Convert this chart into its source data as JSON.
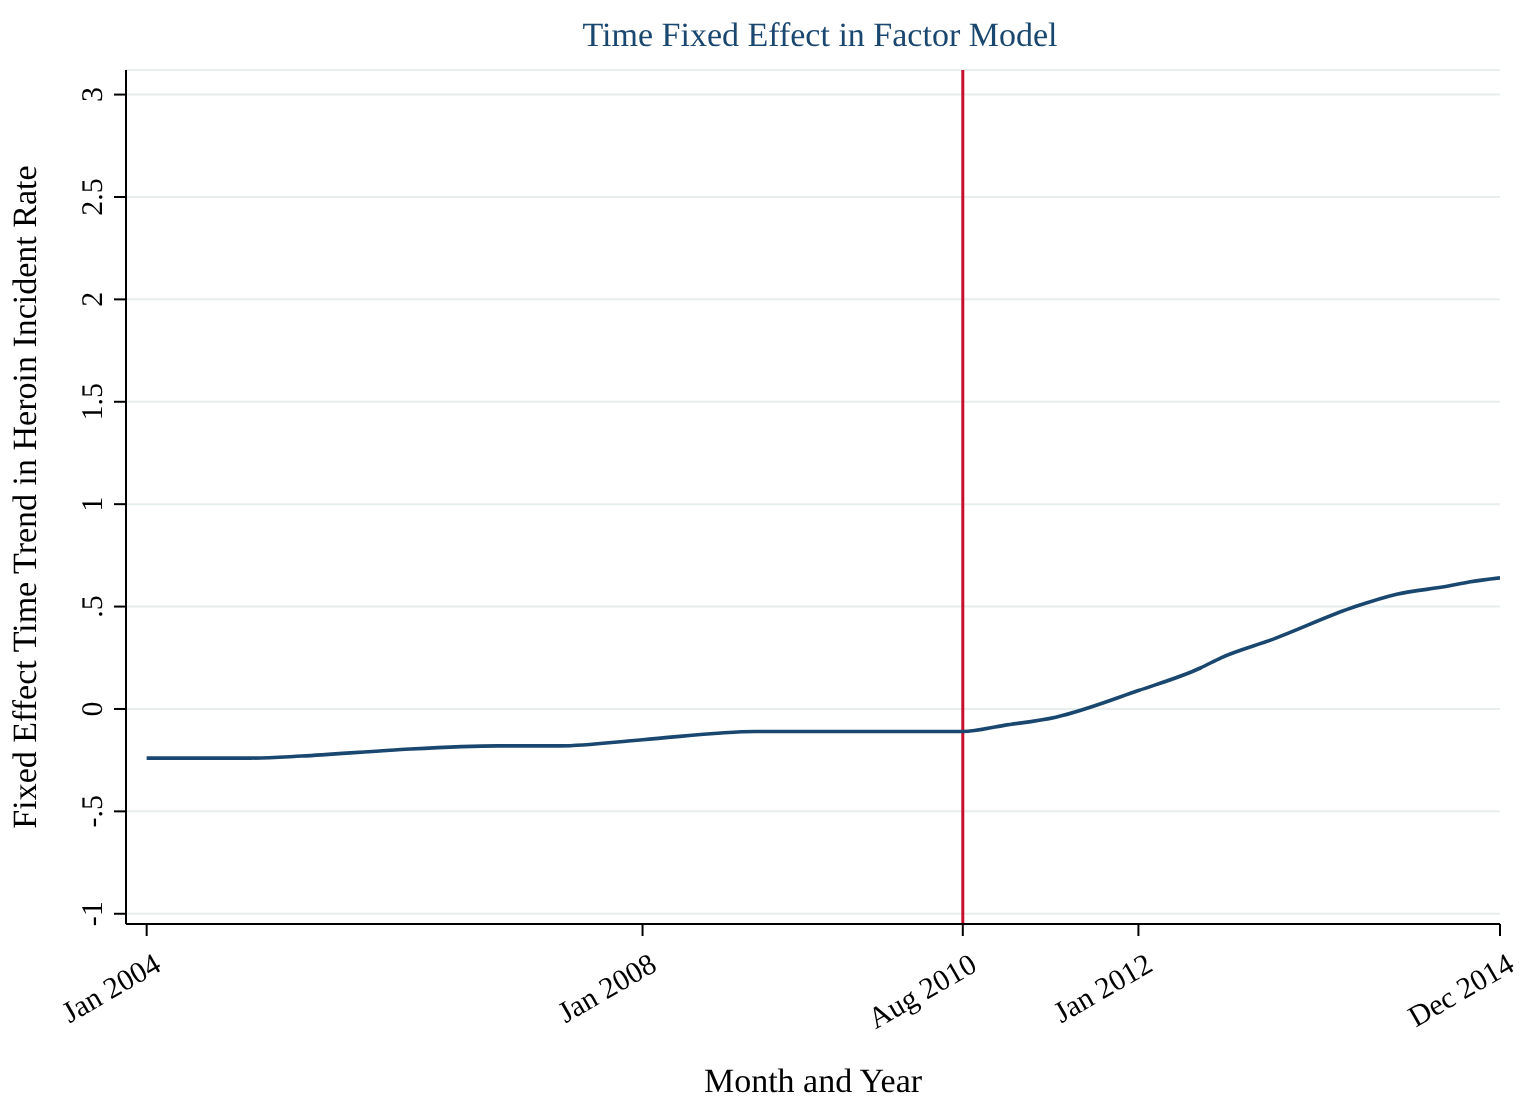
{
  "chart_data": {
    "type": "line",
    "title": "Time Fixed Effect in Factor Model",
    "xlabel": "Month and Year",
    "ylabel": "Fixed Effect Time Trend in Heroin Incident Rate",
    "x": [
      "2004-01",
      "2004-11",
      "2005-04",
      "2006-01",
      "2006-11",
      "2007-05",
      "2008-01",
      "2008-12",
      "2009-11",
      "2010-07",
      "2010-08",
      "2010-12",
      "2011-05",
      "2012-01",
      "2012-07",
      "2012-09",
      "2013-02",
      "2013-10",
      "2014-02",
      "2014-07",
      "2014-09",
      "2014-12"
    ],
    "series": [
      {
        "color": "#1a476f",
        "values": [
          -0.24,
          -0.24,
          -0.23,
          -0.2,
          -0.18,
          -0.18,
          -0.15,
          -0.11,
          -0.11,
          -0.11,
          -0.11,
          -0.08,
          -0.04,
          0.09,
          0.2,
          0.25,
          0.34,
          0.5,
          0.56,
          0.6,
          0.62,
          0.64
        ]
      }
    ],
    "xlim": [
      "2003-11",
      "2014-12"
    ],
    "xticks": [
      {
        "value": "2004-01",
        "label": "Jan 2004"
      },
      {
        "value": "2008-01",
        "label": "Jan 2008"
      },
      {
        "value": "2010-08",
        "label": "Aug 2010"
      },
      {
        "value": "2012-01",
        "label": "Jan 2012"
      },
      {
        "value": "2014-12",
        "label": "Dec 2014"
      }
    ],
    "ylim": [
      -1.05,
      3.12
    ],
    "yticks": [
      {
        "value": -1,
        "label": "-1"
      },
      {
        "value": -0.5,
        "label": "-.5"
      },
      {
        "value": 0,
        "label": "0"
      },
      {
        "value": 0.5,
        "label": ".5"
      },
      {
        "value": 1,
        "label": "1"
      },
      {
        "value": 1.5,
        "label": "1.5"
      },
      {
        "value": 2,
        "label": "2"
      },
      {
        "value": 2.5,
        "label": "2.5"
      },
      {
        "value": 3,
        "label": "3"
      }
    ],
    "ref_lines": [
      {
        "axis": "x",
        "value": "2010-08",
        "color": "#c8102e"
      }
    ],
    "grid": "y",
    "legend": false,
    "marker": "none",
    "line_style": "solid"
  }
}
